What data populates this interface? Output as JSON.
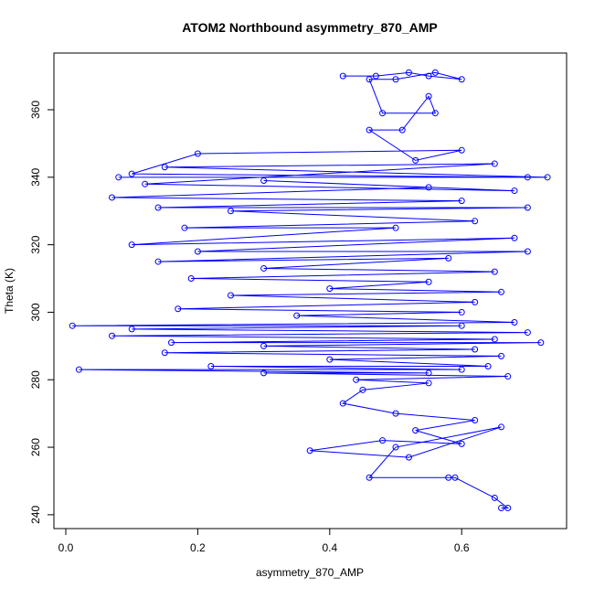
{
  "chart_data": {
    "type": "line",
    "title": "ATOM2 Northbound asymmetry_870_AMP",
    "x_label": "asymmetry_870_AMP",
    "y_label": "Theta (K)",
    "color": "#0000ff",
    "markers": true,
    "x": [
      0.42,
      0.47,
      0.52,
      0.55,
      0.6,
      0.56,
      0.5,
      0.46,
      0.48,
      0.56,
      0.55,
      0.51,
      0.46,
      0.53,
      0.6,
      0.2,
      0.1,
      0.7,
      0.08,
      0.73,
      0.15,
      0.65,
      0.12,
      0.68,
      0.3,
      0.55,
      0.07,
      0.6,
      0.14,
      0.7,
      0.25,
      0.62,
      0.18,
      0.5,
      0.1,
      0.68,
      0.2,
      0.7,
      0.14,
      0.58,
      0.3,
      0.65,
      0.19,
      0.55,
      0.4,
      0.66,
      0.25,
      0.62,
      0.17,
      0.6,
      0.35,
      0.68,
      0.01,
      0.6,
      0.1,
      0.7,
      0.07,
      0.65,
      0.16,
      0.72,
      0.3,
      0.62,
      0.15,
      0.66,
      0.4,
      0.64,
      0.22,
      0.6,
      0.02,
      0.55,
      0.3,
      0.67,
      0.44,
      0.55,
      0.45,
      0.42,
      0.5,
      0.62,
      0.53,
      0.6,
      0.48,
      0.37,
      0.52,
      0.66,
      0.5,
      0.46,
      0.58,
      0.59,
      0.65,
      0.67,
      0.66
    ],
    "y": [
      370,
      370,
      371,
      370,
      369,
      371,
      369,
      369,
      359,
      359,
      364,
      354,
      354,
      345,
      348,
      347,
      341,
      340,
      340,
      340,
      343,
      344,
      338,
      336,
      339,
      337,
      334,
      333,
      331,
      331,
      330,
      327,
      325,
      325,
      320,
      322,
      318,
      318,
      315,
      316,
      313,
      312,
      310,
      309,
      307,
      306,
      305,
      303,
      301,
      300,
      299,
      297,
      296,
      296,
      295,
      294,
      293,
      292,
      291,
      291,
      290,
      289,
      288,
      287,
      286,
      284,
      284,
      283,
      283,
      282,
      282,
      281,
      280,
      279,
      277,
      273,
      270,
      268,
      265,
      261,
      262,
      259,
      257,
      266,
      260,
      251,
      251,
      251,
      245,
      242,
      242
    ],
    "xlim": [
      -0.018,
      0.759
    ],
    "ylim": [
      235.9,
      376.8
    ],
    "xticks": [
      {
        "value": 0,
        "label": "0.0"
      },
      0.2,
      0.4,
      0.6
    ],
    "yticks": [
      240,
      260,
      280,
      300,
      320,
      340,
      360
    ]
  }
}
